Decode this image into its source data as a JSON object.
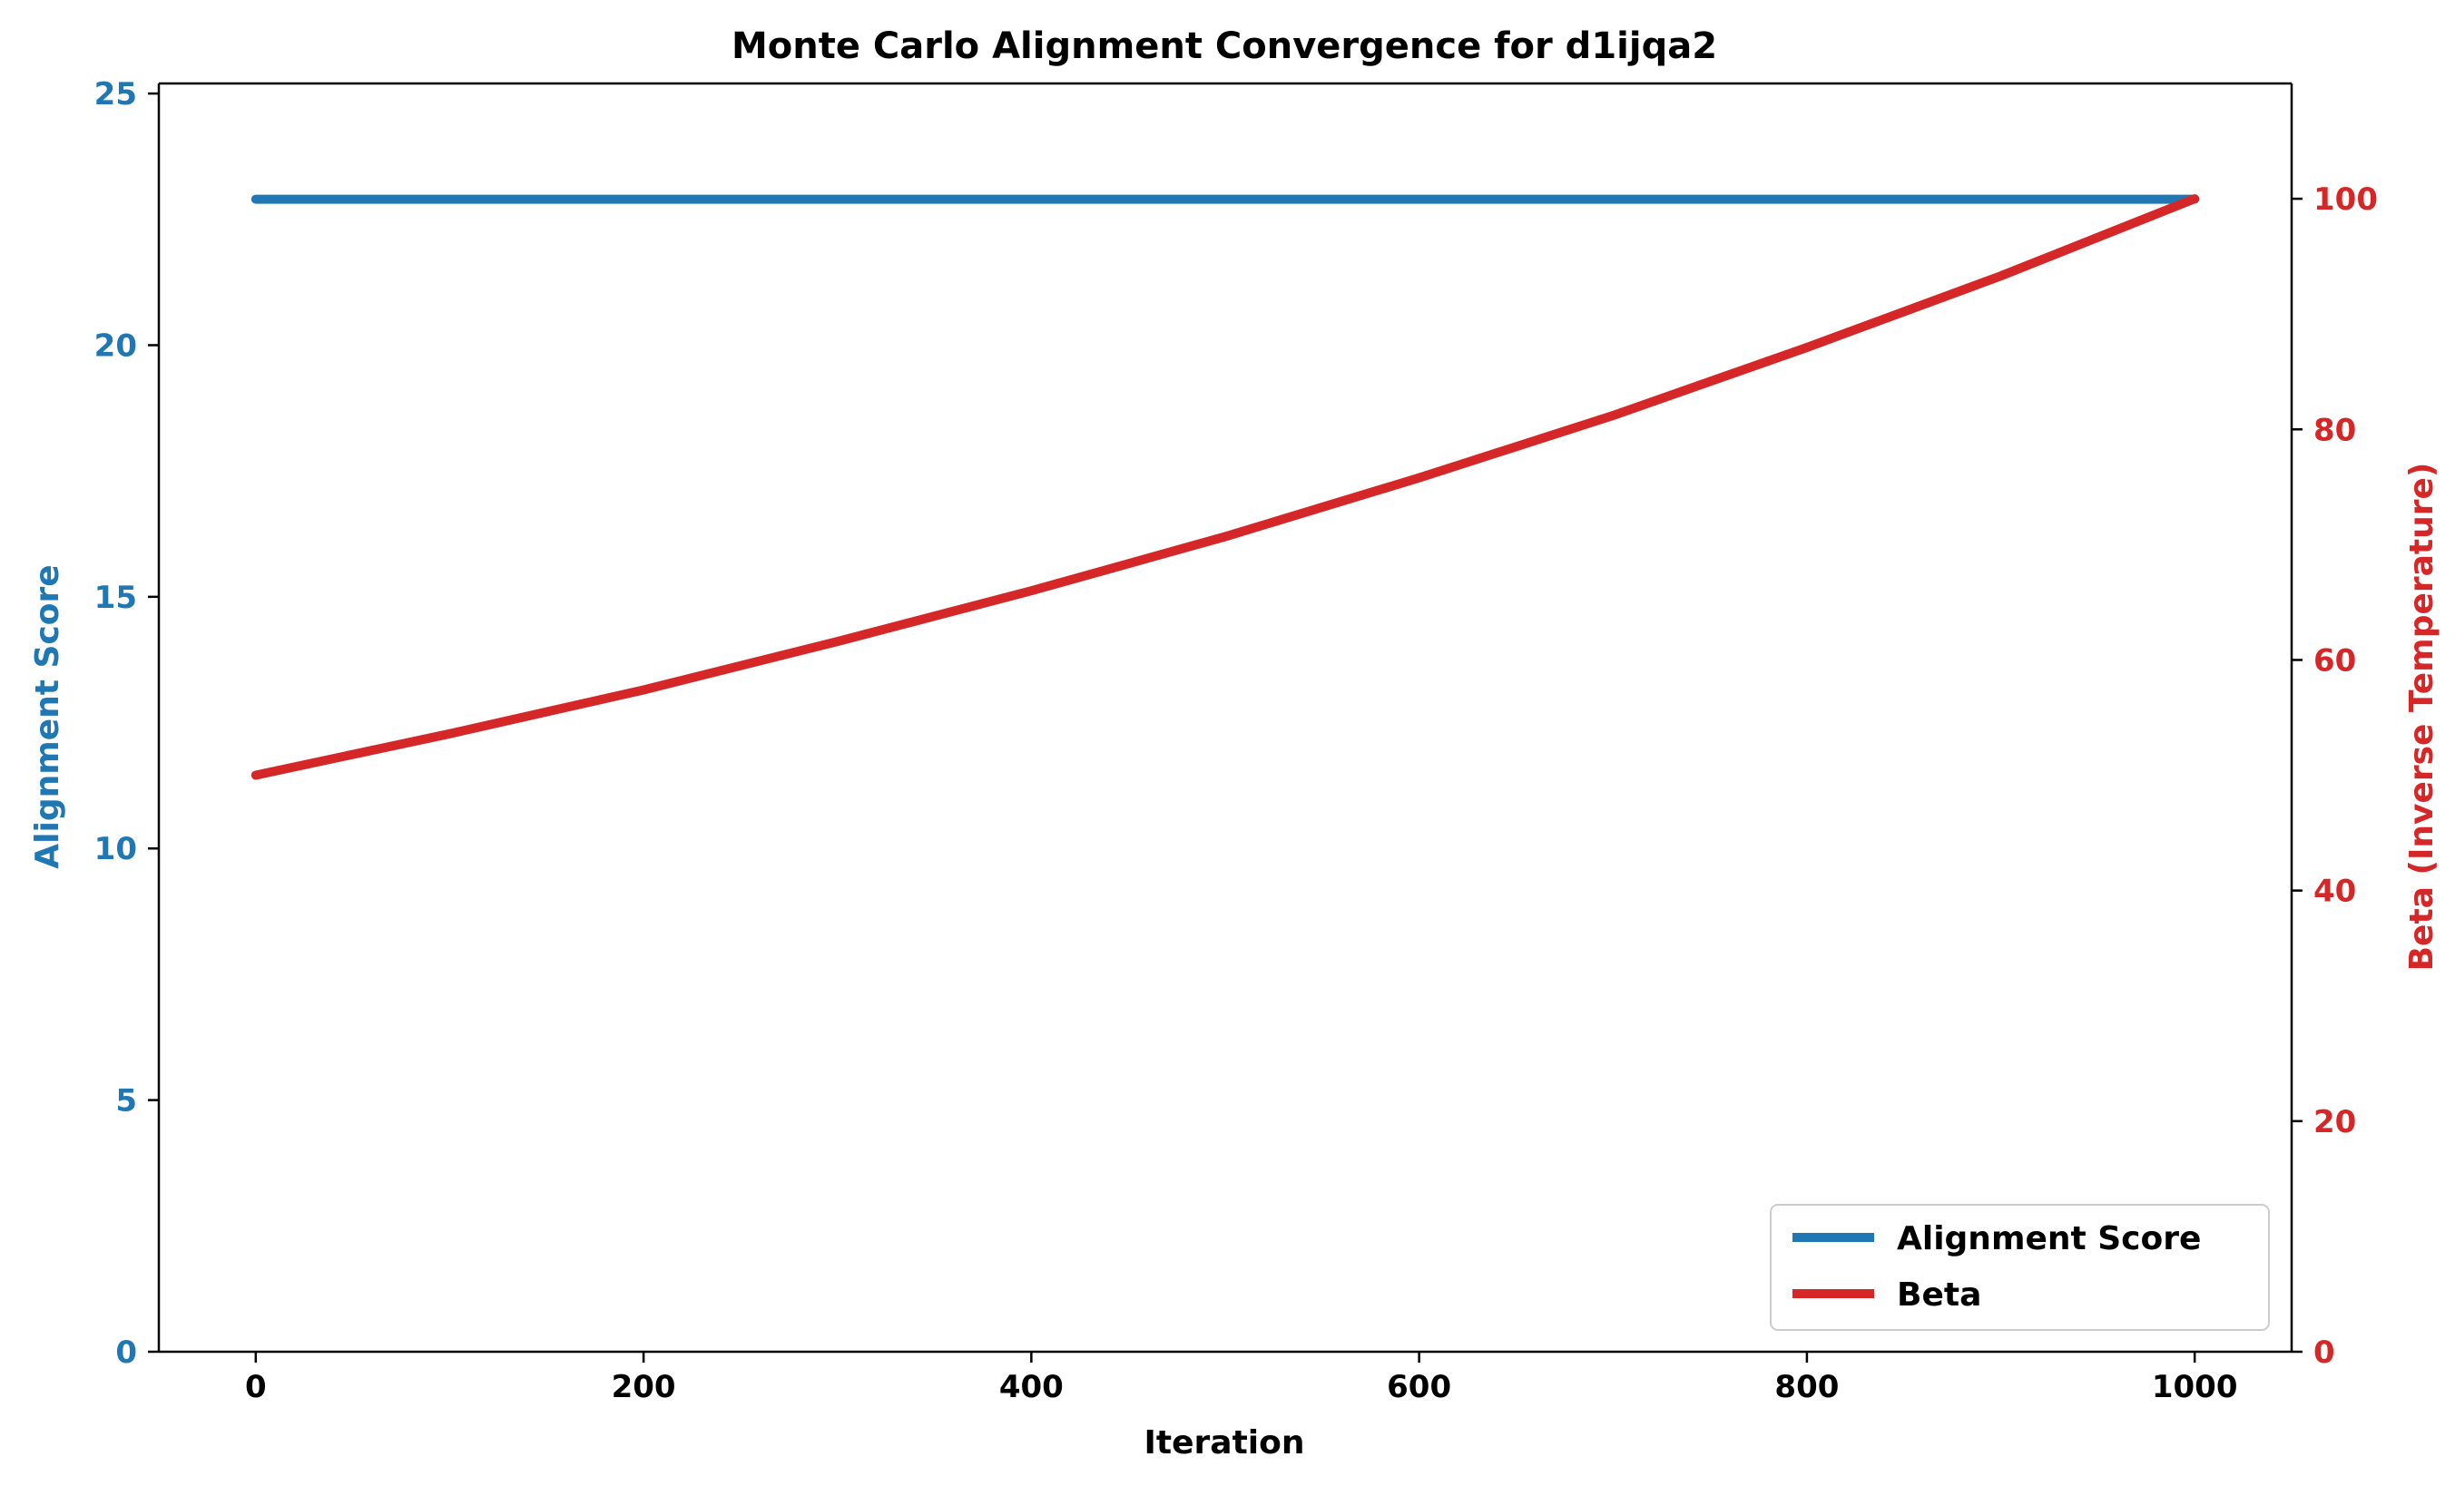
{
  "chart_data": {
    "type": "line",
    "title": "Monte Carlo Alignment Convergence for d1ijqa2",
    "xlabel": "Iteration",
    "ylabel_left": "Alignment Score",
    "ylabel_right": "Beta (Inverse Temperature)",
    "xlim": [
      -50,
      1050
    ],
    "ylim_left": [
      0,
      25.2
    ],
    "ylim_right": [
      0,
      110
    ],
    "x_ticks": [
      0,
      200,
      400,
      600,
      800,
      1000
    ],
    "y_ticks_left": [
      0,
      5,
      10,
      15,
      20,
      25
    ],
    "y_ticks_right": [
      0,
      20,
      40,
      60,
      80,
      100
    ],
    "grid": false,
    "legend_position": "bottom-right",
    "series": [
      {
        "name": "Alignment Score",
        "axis": "left",
        "color": "#1f77b4",
        "x": [
          0,
          1000
        ],
        "y": [
          22.9,
          22.9
        ]
      },
      {
        "name": "Beta",
        "axis": "right",
        "color": "#d62728",
        "x": [
          0,
          100,
          200,
          300,
          400,
          500,
          600,
          700,
          800,
          900,
          1000
        ],
        "y": [
          50,
          53.6,
          57.4,
          61.6,
          66.0,
          70.7,
          75.8,
          81.2,
          87.1,
          93.3,
          100
        ]
      }
    ]
  }
}
